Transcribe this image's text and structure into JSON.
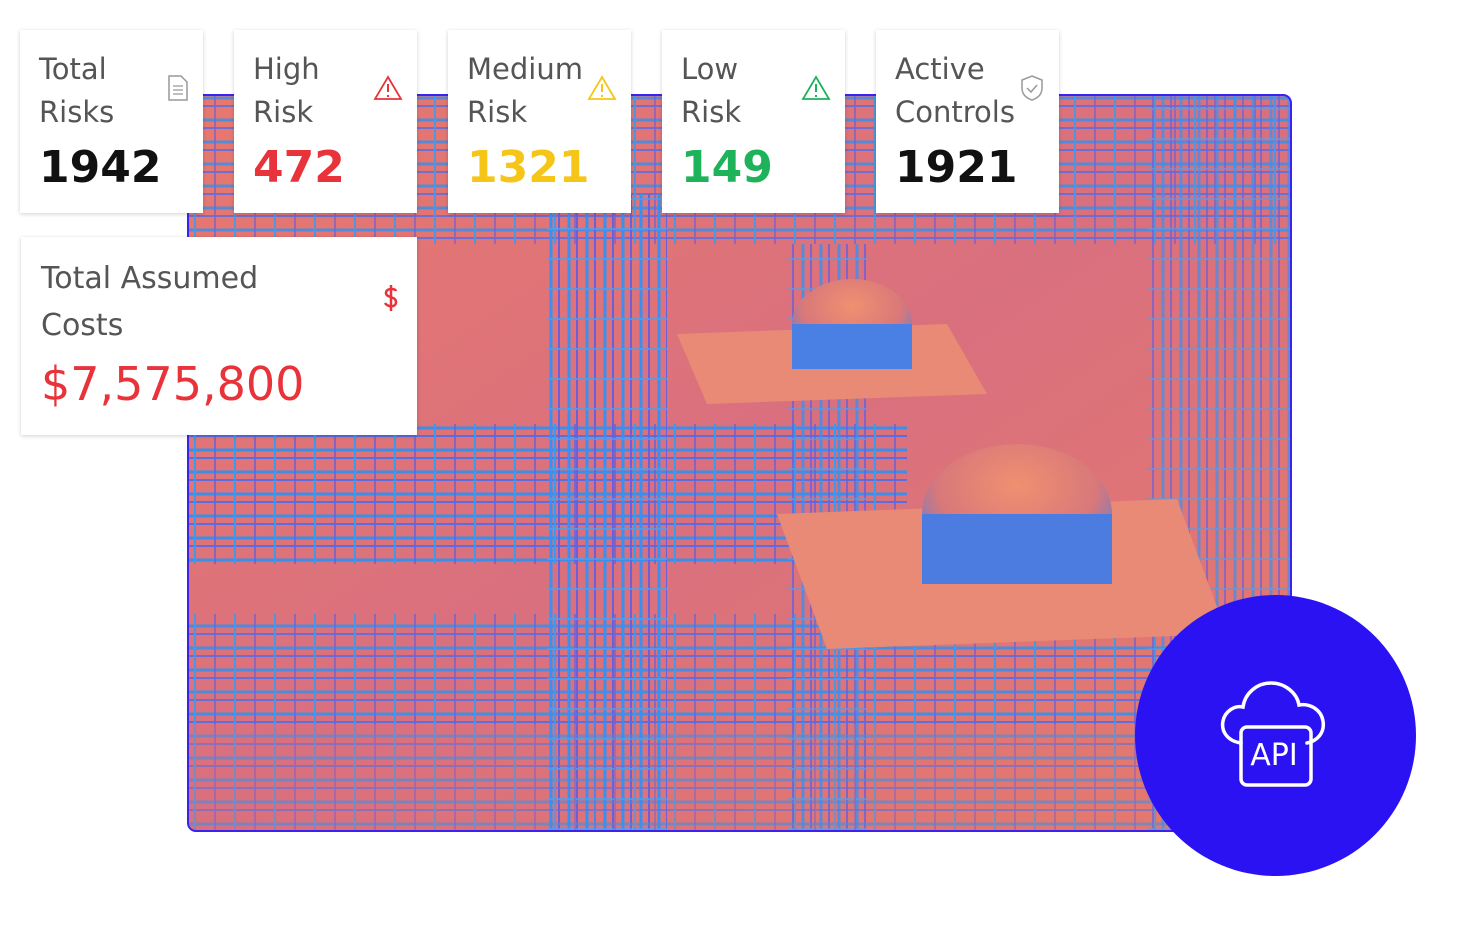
{
  "cards": [
    {
      "label": "Total Risks",
      "value": 1942
    },
    {
      "label": "High Risk",
      "value": 472
    },
    {
      "label": "Medium Risk",
      "value": 1321
    },
    {
      "label": "Low Risk",
      "value": 149
    },
    {
      "label": "Active Controls",
      "value": 1921
    }
  ],
  "cost_card": {
    "label": "Total Assumed Costs",
    "value": "$7,575,800"
  },
  "api_badge": {
    "label": "API"
  }
}
